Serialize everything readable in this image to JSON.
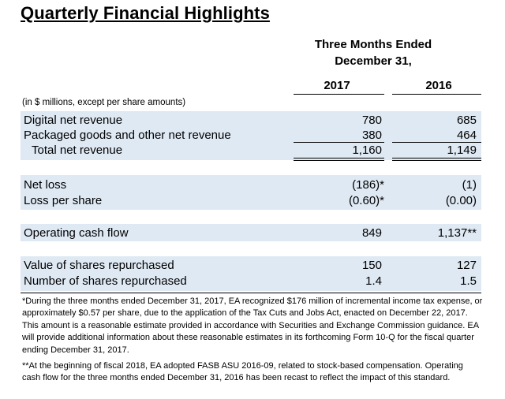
{
  "title": "Quarterly Financial Highlights",
  "header": {
    "period_line1": "Three Months Ended",
    "period_line2": "December 31,",
    "year1": "2017",
    "year2": "2016"
  },
  "units_note": "(in $ millions, except per share amounts)",
  "rows": [
    {
      "label": "Digital net revenue",
      "v2017": "780",
      "v2016": "685"
    },
    {
      "label": "Packaged goods and other net revenue",
      "v2017": "380",
      "v2016": "464"
    },
    {
      "label": "Total net revenue",
      "v2017": "1,160",
      "v2016": "1,149"
    },
    {
      "label": "Net loss",
      "v2017": "(186)*",
      "v2016": "(1)"
    },
    {
      "label": "Loss per share",
      "v2017": "(0.60)*",
      "v2016": "(0.00)"
    },
    {
      "label": "Operating cash flow",
      "v2017": "849",
      "v2016": "1,137**"
    },
    {
      "label": "Value of shares repurchased",
      "v2017": "150",
      "v2016": "127"
    },
    {
      "label": "Number of shares repurchased",
      "v2017": "1.4",
      "v2016": "1.5"
    }
  ],
  "footnotes": {
    "note1": "*During the three months ended December 31, 2017, EA recognized $176 million of incremental income tax expense, or approximately $0.57 per share, due to the application of the Tax Cuts and Jobs Act, enacted on December 22, 2017. This amount is a reasonable estimate provided in accordance with Securities and Exchange Commission guidance. EA will provide additional information about these reasonable estimates in its forthcoming Form 10-Q for the fiscal quarter ending December 31, 2017.",
    "note2": "**At the beginning of fiscal 2018, EA adopted FASB ASU 2016-09, related to stock-based compensation. Operating cash flow for the three months ended December 31, 2016 has been recast to reflect the impact of this standard."
  },
  "colors": {
    "band": "#dfe9f4",
    "text": "#000000"
  }
}
